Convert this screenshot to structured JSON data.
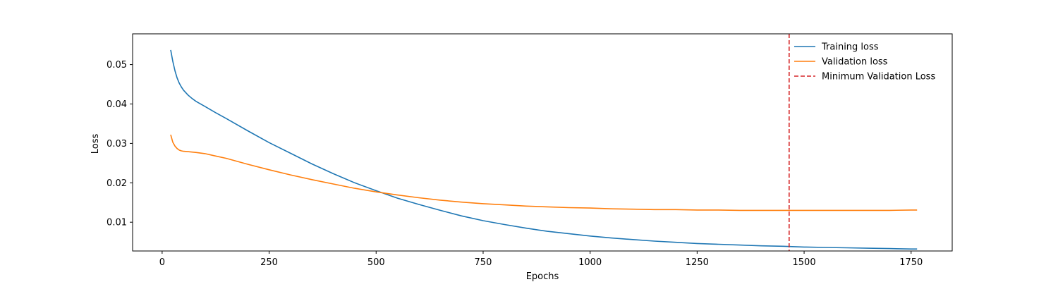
{
  "chart_data": {
    "type": "line",
    "xlabel": "Epochs",
    "ylabel": "Loss",
    "xlim": [
      -69,
      1846
    ],
    "ylim": [
      0.0027,
      0.0578
    ],
    "x_ticks": [
      0,
      250,
      500,
      750,
      1000,
      1250,
      1500,
      1750
    ],
    "y_ticks": [
      0.01,
      0.02,
      0.03,
      0.04,
      0.05
    ],
    "x_tick_labels": [
      "0",
      "250",
      "500",
      "750",
      "1000",
      "1250",
      "1500",
      "1750"
    ],
    "y_tick_labels": [
      "0.01",
      "0.02",
      "0.03",
      "0.04",
      "0.05"
    ],
    "grid": false,
    "legend_position": "top-right",
    "series": [
      {
        "name": "Training loss",
        "color": "#1f77b4",
        "style": "solid",
        "x": [
          20,
          25,
          30,
          35,
          40,
          45,
          50,
          60,
          70,
          80,
          100,
          125,
          150,
          200,
          250,
          300,
          350,
          400,
          450,
          500,
          550,
          600,
          650,
          700,
          750,
          800,
          850,
          900,
          950,
          1000,
          1050,
          1100,
          1150,
          1200,
          1250,
          1300,
          1350,
          1400,
          1450,
          1500,
          1550,
          1600,
          1650,
          1700,
          1750,
          1764
        ],
        "y": [
          0.0537,
          0.0508,
          0.0484,
          0.0466,
          0.0453,
          0.0443,
          0.0435,
          0.0423,
          0.0414,
          0.0406,
          0.0394,
          0.0378,
          0.0363,
          0.0332,
          0.0302,
          0.0275,
          0.0248,
          0.0223,
          0.02,
          0.018,
          0.0161,
          0.0145,
          0.013,
          0.0116,
          0.0104,
          0.0094,
          0.0085,
          0.0077,
          0.0071,
          0.0065,
          0.006,
          0.0056,
          0.0052,
          0.0049,
          0.0046,
          0.0044,
          0.0042,
          0.004,
          0.0039,
          0.0037,
          0.0036,
          0.0035,
          0.0034,
          0.0033,
          0.0032,
          0.0032
        ]
      },
      {
        "name": "Validation loss",
        "color": "#ff7f0e",
        "style": "solid",
        "x": [
          20,
          25,
          30,
          35,
          40,
          45,
          50,
          60,
          70,
          80,
          100,
          125,
          150,
          200,
          250,
          300,
          350,
          400,
          450,
          500,
          550,
          600,
          650,
          700,
          750,
          800,
          850,
          900,
          950,
          1000,
          1050,
          1100,
          1150,
          1200,
          1250,
          1300,
          1350,
          1400,
          1450,
          1500,
          1550,
          1600,
          1650,
          1700,
          1750,
          1764
        ],
        "y": [
          0.0322,
          0.0303,
          0.0293,
          0.0287,
          0.0283,
          0.0281,
          0.028,
          0.0279,
          0.0278,
          0.0277,
          0.0274,
          0.0268,
          0.0262,
          0.0247,
          0.0233,
          0.022,
          0.0208,
          0.0197,
          0.0186,
          0.0177,
          0.0169,
          0.0162,
          0.0156,
          0.0151,
          0.0147,
          0.0144,
          0.0141,
          0.0139,
          0.0137,
          0.0136,
          0.0134,
          0.0133,
          0.0132,
          0.0132,
          0.0131,
          0.0131,
          0.013,
          0.013,
          0.013,
          0.013,
          0.013,
          0.013,
          0.013,
          0.013,
          0.0131,
          0.0131
        ]
      }
    ],
    "vlines": [
      {
        "name": "Minimum Validation Loss",
        "x": 1465,
        "color": "#d62728",
        "style": "dashed"
      }
    ]
  }
}
